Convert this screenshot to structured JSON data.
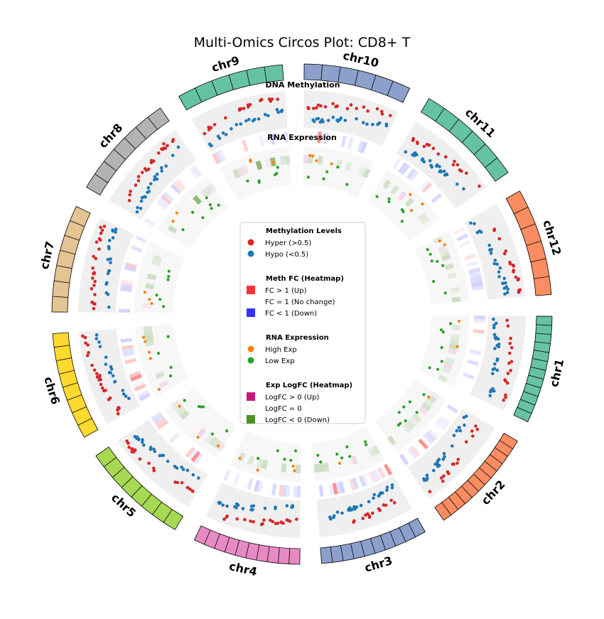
{
  "chart_data": {
    "type": "circos",
    "title": "Multi-Omics Circos Plot: CD8+ T",
    "track_labels": {
      "methylation": "DNA Methylation",
      "expression": "RNA Expression"
    },
    "chromosomes": [
      {
        "name": "chr1",
        "color": "#66c2a5",
        "segments": 12
      },
      {
        "name": "chr2",
        "color": "#fc8d62",
        "segments": 12
      },
      {
        "name": "chr3",
        "color": "#8da0cb",
        "segments": 10
      },
      {
        "name": "chr4",
        "color": "#e78ac3",
        "segments": 10
      },
      {
        "name": "chr5",
        "color": "#a6d854",
        "segments": 8
      },
      {
        "name": "chr6",
        "color": "#ffd92f",
        "segments": 8
      },
      {
        "name": "chr7",
        "color": "#e5c494",
        "segments": 7
      },
      {
        "name": "chr8",
        "color": "#b3b3b3",
        "segments": 7
      },
      {
        "name": "chr9",
        "color": "#66c2a5",
        "segments": 6
      },
      {
        "name": "chr10",
        "color": "#8da0cb",
        "segments": 6
      },
      {
        "name": "chr11",
        "color": "#66c2a5",
        "segments": 6
      },
      {
        "name": "chr12",
        "color": "#fc8d62",
        "segments": 6
      }
    ],
    "colors": {
      "hyper": "#d62728",
      "hypo": "#1f77b4",
      "fc_up": "#ff3333",
      "fc_down": "#3333ff",
      "high_exp": "#ff7f0e",
      "low_exp": "#2ca02c",
      "logfc_up": "#c51b7d",
      "logfc_down": "#4d9221",
      "meth_track_bg": "#efefef",
      "exp_track_bg": "#f7f7f7"
    },
    "legend": {
      "sections": [
        {
          "title": "Methylation Levels",
          "items": [
            {
              "label": "Hyper (>0.5)",
              "marker": "circle",
              "color": "#d62728"
            },
            {
              "label": "Hypo (<0.5)",
              "marker": "circle",
              "color": "#1f77b4"
            }
          ]
        },
        {
          "title": "Meth FC (Heatmap)",
          "items": [
            {
              "label": "FC > 1 (Up)",
              "marker": "square",
              "color": "#ff3333"
            },
            {
              "label": "FC = 1 (No change)",
              "marker": "square",
              "color": "#ffffff"
            },
            {
              "label": "FC < 1 (Down)",
              "marker": "square",
              "color": "#3333ff"
            }
          ]
        },
        {
          "title": "RNA Expression",
          "items": [
            {
              "label": "High Exp",
              "marker": "circle",
              "color": "#ff7f0e"
            },
            {
              "label": "Low Exp",
              "marker": "circle",
              "color": "#2ca02c"
            }
          ]
        },
        {
          "title": "Exp LogFC (Heatmap)",
          "items": [
            {
              "label": "LogFC > 0 (Up)",
              "marker": "square",
              "color": "#c51b7d"
            },
            {
              "label": "LogFC = 0",
              "marker": "square",
              "color": "#ffffff"
            },
            {
              "label": "LogFC < 0 (Down)",
              "marker": "square",
              "color": "#4d9221"
            }
          ]
        }
      ]
    }
  }
}
